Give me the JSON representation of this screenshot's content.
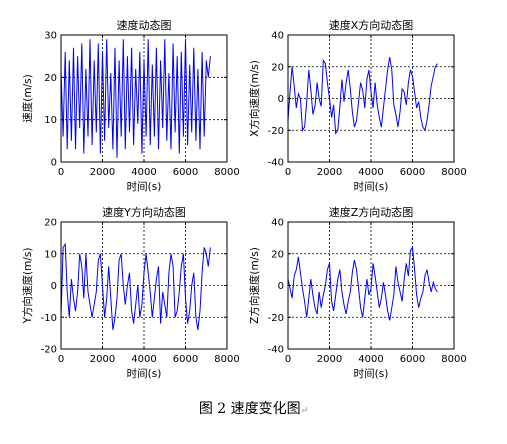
{
  "caption": "图 2  速度变化图",
  "caption_mark": "↵",
  "chart_data": [
    {
      "type": "line",
      "title": "速度动态图",
      "xlabel": "时间(s)",
      "ylabel": "速度(m/s)",
      "xlim": [
        0,
        8000
      ],
      "ylim": [
        0,
        30
      ],
      "xticks": [
        0,
        2000,
        4000,
        6000,
        8000
      ],
      "yticks": [
        0,
        10,
        20,
        30
      ],
      "grid": true,
      "series": [
        {
          "color": "#0000ff",
          "x": [
            0,
            100,
            200,
            300,
            400,
            500,
            600,
            700,
            800,
            900,
            1000,
            1100,
            1200,
            1300,
            1400,
            1500,
            1600,
            1700,
            1800,
            1900,
            2000,
            2100,
            2200,
            2300,
            2400,
            2500,
            2600,
            2700,
            2800,
            2900,
            3000,
            3100,
            3200,
            3300,
            3400,
            3500,
            3600,
            3700,
            3800,
            3900,
            4000,
            4100,
            4200,
            4300,
            4400,
            4500,
            4600,
            4700,
            4800,
            4900,
            5000,
            5100,
            5200,
            5300,
            5400,
            5500,
            5600,
            5700,
            5800,
            5900,
            6000,
            6100,
            6200,
            6300,
            6400,
            6500,
            6600,
            6700,
            6800,
            6900,
            7000,
            7100,
            7200
          ],
          "y": [
            22,
            6,
            26,
            3,
            24,
            5,
            27,
            3,
            25,
            8,
            28,
            2,
            22,
            6,
            29,
            4,
            24,
            7,
            28,
            2,
            26,
            5,
            29,
            8,
            21,
            3,
            27,
            1,
            24,
            6,
            29,
            3,
            25,
            7,
            27,
            4,
            22,
            9,
            26,
            2,
            24,
            6,
            29,
            4,
            23,
            6,
            27,
            3,
            24,
            8,
            29,
            5,
            21,
            3,
            28,
            7,
            25,
            2,
            26,
            6,
            29,
            4,
            23,
            7,
            27,
            5,
            22,
            3,
            26,
            6,
            24,
            20,
            25
          ]
        }
      ]
    },
    {
      "type": "line",
      "title": "速度X方向动态图",
      "xlabel": "时间(s)",
      "ylabel": "X方向速度(m/s)",
      "xlim": [
        0,
        8000
      ],
      "ylim": [
        -40,
        40
      ],
      "xticks": [
        0,
        2000,
        4000,
        6000,
        8000
      ],
      "yticks": [
        -40,
        -20,
        0,
        20,
        40
      ],
      "grid": true,
      "series": [
        {
          "color": "#0000ff",
          "x": [
            0,
            100,
            200,
            300,
            400,
            500,
            600,
            700,
            800,
            900,
            1000,
            1100,
            1200,
            1300,
            1400,
            1500,
            1600,
            1700,
            1800,
            1900,
            2000,
            2100,
            2200,
            2300,
            2400,
            2500,
            2600,
            2700,
            2800,
            2900,
            3000,
            3100,
            3200,
            3300,
            3400,
            3500,
            3600,
            3700,
            3800,
            3900,
            4000,
            4100,
            4200,
            4300,
            4400,
            4500,
            4600,
            4700,
            4800,
            4900,
            5000,
            5100,
            5200,
            5300,
            5400,
            5500,
            5600,
            5700,
            5800,
            5900,
            6000,
            6100,
            6200,
            6300,
            6400,
            6500,
            6600,
            6700,
            6800,
            6900,
            7000,
            7100,
            7200
          ],
          "y": [
            -14,
            5,
            20,
            8,
            -6,
            3,
            0,
            -20,
            -18,
            -2,
            18,
            6,
            -10,
            -5,
            10,
            0,
            -5,
            24,
            22,
            10,
            0,
            -12,
            -4,
            -22,
            -20,
            -5,
            12,
            -2,
            10,
            18,
            6,
            -8,
            -18,
            -14,
            -2,
            10,
            5,
            -6,
            12,
            18,
            4,
            -6,
            10,
            -4,
            -12,
            -18,
            -6,
            6,
            18,
            26,
            18,
            -4,
            -10,
            -18,
            -8,
            6,
            4,
            -4,
            10,
            18,
            14,
            4,
            -6,
            -2,
            -12,
            -18,
            -20,
            -14,
            -4,
            8,
            14,
            20,
            22
          ]
        }
      ]
    },
    {
      "type": "line",
      "title": "速度Y方向动态图",
      "xlabel": "时间(s)",
      "ylabel": "Y方向速度(m/s)",
      "xlim": [
        0,
        8000
      ],
      "ylim": [
        -20,
        20
      ],
      "xticks": [
        0,
        2000,
        4000,
        6000,
        8000
      ],
      "yticks": [
        -20,
        -10,
        0,
        10,
        20
      ],
      "grid": true,
      "series": [
        {
          "color": "#0000ff",
          "x": [
            0,
            100,
            200,
            300,
            400,
            500,
            600,
            700,
            800,
            900,
            1000,
            1100,
            1200,
            1300,
            1400,
            1500,
            1600,
            1700,
            1800,
            1900,
            2000,
            2100,
            2200,
            2300,
            2400,
            2500,
            2600,
            2700,
            2800,
            2900,
            3000,
            3100,
            3200,
            3300,
            3400,
            3500,
            3600,
            3700,
            3800,
            3900,
            4000,
            4100,
            4200,
            4300,
            4400,
            4500,
            4600,
            4700,
            4800,
            4900,
            5000,
            5100,
            5200,
            5300,
            5400,
            5500,
            5600,
            5700,
            5800,
            5900,
            6000,
            6100,
            6200,
            6300,
            6400,
            6500,
            6600,
            6700,
            6800,
            6900,
            7000,
            7100,
            7200
          ],
          "y": [
            -10,
            12,
            13,
            -2,
            -10,
            2,
            -4,
            -8,
            -2,
            10,
            6,
            -4,
            10,
            -2,
            -6,
            -10,
            -6,
            -2,
            8,
            10,
            0,
            -10,
            -4,
            6,
            -4,
            -14,
            -10,
            -4,
            8,
            10,
            0,
            -6,
            0,
            4,
            -8,
            -12,
            -6,
            0,
            -10,
            -6,
            4,
            10,
            4,
            -2,
            -10,
            -4,
            2,
            6,
            -12,
            -2,
            -6,
            -10,
            4,
            10,
            6,
            -10,
            -8,
            -2,
            6,
            10,
            -4,
            -12,
            -8,
            0,
            4,
            -10,
            -14,
            -8,
            4,
            12,
            10,
            6,
            12
          ]
        }
      ]
    },
    {
      "type": "line",
      "title": "速度Z方向动态图",
      "xlabel": "时间(s)",
      "ylabel": "Z方向速度(m/s)",
      "xlim": [
        0,
        8000
      ],
      "ylim": [
        -40,
        40
      ],
      "xticks": [
        0,
        2000,
        4000,
        6000,
        8000
      ],
      "yticks": [
        -40,
        -20,
        0,
        20,
        40
      ],
      "grid": true,
      "series": [
        {
          "color": "#0000ff",
          "x": [
            0,
            100,
            200,
            300,
            400,
            500,
            600,
            700,
            800,
            900,
            1000,
            1100,
            1200,
            1300,
            1400,
            1500,
            1600,
            1700,
            1800,
            1900,
            2000,
            2100,
            2200,
            2300,
            2400,
            2500,
            2600,
            2700,
            2800,
            2900,
            3000,
            3100,
            3200,
            3300,
            3400,
            3500,
            3600,
            3700,
            3800,
            3900,
            4000,
            4100,
            4200,
            4300,
            4400,
            4500,
            4600,
            4700,
            4800,
            4900,
            5000,
            5100,
            5200,
            5300,
            5400,
            5500,
            5600,
            5700,
            5800,
            5900,
            6000,
            6100,
            6200,
            6300,
            6400,
            6500,
            6600,
            6700,
            6800,
            6900,
            7000,
            7100,
            7200
          ],
          "y": [
            4,
            -2,
            -8,
            6,
            10,
            18,
            8,
            -2,
            -10,
            -20,
            -8,
            4,
            -6,
            -14,
            -18,
            -4,
            -14,
            -6,
            0,
            10,
            14,
            -10,
            -16,
            -6,
            4,
            10,
            -4,
            -12,
            -18,
            -10,
            -4,
            8,
            16,
            10,
            -2,
            -14,
            -20,
            -8,
            4,
            -6,
            -2,
            14,
            6,
            -4,
            -14,
            -8,
            2,
            -6,
            -16,
            -22,
            -14,
            -6,
            12,
            2,
            -4,
            -10,
            4,
            14,
            6,
            22,
            24,
            10,
            -6,
            -14,
            -8,
            -4,
            6,
            10,
            2,
            -4,
            2,
            -2,
            -4
          ]
        }
      ]
    }
  ]
}
